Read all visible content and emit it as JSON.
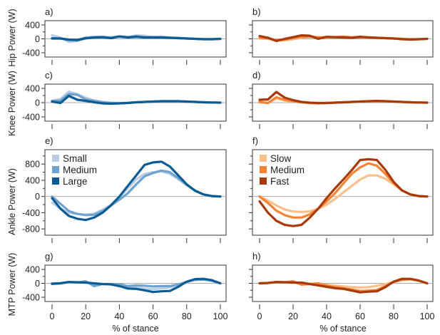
{
  "figure": {
    "x_axis_title": "% of stance",
    "row_ylabels": [
      "Hip Power (W)",
      "Knee Power (W)",
      "Ankle Power (W)",
      "MTP Power (W)"
    ]
  },
  "chart_data": [
    {
      "id": "a",
      "panel_label": "a)",
      "type": "line",
      "joint": "Hip",
      "condition_group": "size",
      "ylabel": "Hip Power (W)",
      "xlabel": "",
      "xlim": [
        0,
        100
      ],
      "ylim": [
        -400,
        400
      ],
      "yticks": [
        -400,
        0,
        400
      ],
      "xticks": [
        0,
        20,
        40,
        60,
        80,
        100
      ],
      "show_x_tick_labels": false,
      "show_y_tick_labels": true,
      "zero_line": true,
      "x": [
        0,
        5,
        10,
        15,
        20,
        25,
        30,
        35,
        40,
        45,
        50,
        55,
        60,
        65,
        70,
        75,
        80,
        85,
        90,
        95,
        100
      ],
      "series": [
        {
          "name": "Small",
          "color": "#bccde6",
          "values": [
            100,
            40,
            -90,
            -60,
            40,
            60,
            60,
            50,
            60,
            40,
            100,
            90,
            50,
            70,
            40,
            30,
            10,
            0,
            -10,
            -10,
            0
          ]
        },
        {
          "name": "Medium",
          "color": "#6fa3cf",
          "values": [
            20,
            10,
            -40,
            -50,
            10,
            40,
            50,
            30,
            70,
            50,
            80,
            40,
            50,
            40,
            30,
            20,
            10,
            0,
            -10,
            -10,
            0
          ]
        },
        {
          "name": "Large",
          "color": "#0b5c94",
          "values": [
            10,
            10,
            -20,
            -30,
            20,
            40,
            50,
            20,
            70,
            40,
            60,
            40,
            40,
            40,
            30,
            20,
            10,
            0,
            -10,
            -10,
            0
          ]
        }
      ]
    },
    {
      "id": "b",
      "panel_label": "b)",
      "type": "line",
      "joint": "Hip",
      "condition_group": "speed",
      "ylabel": "",
      "xlabel": "",
      "xlim": [
        0,
        100
      ],
      "ylim": [
        -400,
        400
      ],
      "yticks": [
        -400,
        0,
        400
      ],
      "xticks": [
        0,
        20,
        40,
        60,
        80,
        100
      ],
      "show_x_tick_labels": false,
      "show_y_tick_labels": false,
      "zero_line": true,
      "x": [
        0,
        5,
        10,
        15,
        20,
        25,
        30,
        35,
        40,
        45,
        50,
        55,
        60,
        65,
        70,
        75,
        80,
        85,
        90,
        95,
        100
      ],
      "series": [
        {
          "name": "Slow",
          "color": "#fbbf8a",
          "values": [
            10,
            0,
            -60,
            -40,
            -10,
            30,
            60,
            50,
            40,
            50,
            70,
            50,
            60,
            50,
            30,
            20,
            10,
            0,
            -10,
            -10,
            0
          ]
        },
        {
          "name": "Medium",
          "color": "#f48434",
          "values": [
            30,
            20,
            -40,
            -20,
            20,
            60,
            70,
            40,
            50,
            50,
            60,
            40,
            50,
            40,
            30,
            20,
            10,
            0,
            -10,
            -10,
            0
          ]
        },
        {
          "name": "Fast",
          "color": "#a83a0a",
          "values": [
            80,
            30,
            -60,
            0,
            50,
            100,
            90,
            0,
            60,
            50,
            40,
            30,
            60,
            40,
            30,
            20,
            10,
            -10,
            -20,
            -10,
            0
          ]
        }
      ]
    },
    {
      "id": "c",
      "panel_label": "c)",
      "type": "line",
      "joint": "Knee",
      "condition_group": "size",
      "ylabel": "Knee Power (W)",
      "xlabel": "",
      "xlim": [
        0,
        100
      ],
      "ylim": [
        -400,
        400
      ],
      "yticks": [
        -400,
        0,
        400
      ],
      "xticks": [
        0,
        20,
        40,
        60,
        80,
        100
      ],
      "show_x_tick_labels": false,
      "show_y_tick_labels": true,
      "zero_line": true,
      "x": [
        0,
        5,
        10,
        15,
        20,
        25,
        30,
        35,
        40,
        45,
        50,
        55,
        60,
        65,
        70,
        75,
        80,
        85,
        90,
        95,
        100
      ],
      "series": [
        {
          "name": "Small",
          "color": "#bccde6",
          "values": [
            60,
            100,
            310,
            240,
            140,
            60,
            20,
            0,
            -10,
            0,
            10,
            20,
            30,
            40,
            40,
            40,
            30,
            20,
            10,
            5,
            0
          ]
        },
        {
          "name": "Medium",
          "color": "#6fa3cf",
          "values": [
            40,
            60,
            240,
            220,
            90,
            50,
            10,
            -10,
            -20,
            -10,
            10,
            20,
            30,
            40,
            40,
            40,
            30,
            20,
            10,
            5,
            0
          ]
        },
        {
          "name": "Large",
          "color": "#0b5c94",
          "values": [
            30,
            -10,
            190,
            80,
            50,
            10,
            -20,
            -30,
            -20,
            -10,
            10,
            20,
            30,
            40,
            40,
            40,
            30,
            20,
            10,
            5,
            0
          ]
        }
      ]
    },
    {
      "id": "d",
      "panel_label": "d)",
      "type": "line",
      "joint": "Knee",
      "condition_group": "speed",
      "ylabel": "",
      "xlabel": "",
      "xlim": [
        0,
        100
      ],
      "ylim": [
        -400,
        400
      ],
      "yticks": [
        -400,
        0,
        400
      ],
      "xticks": [
        0,
        20,
        40,
        60,
        80,
        100
      ],
      "show_x_tick_labels": false,
      "show_y_tick_labels": false,
      "zero_line": true,
      "x": [
        0,
        5,
        10,
        15,
        20,
        25,
        30,
        35,
        40,
        45,
        50,
        55,
        60,
        65,
        70,
        75,
        80,
        85,
        90,
        95,
        100
      ],
      "series": [
        {
          "name": "Slow",
          "color": "#fbbf8a",
          "values": [
            10,
            -10,
            120,
            60,
            30,
            10,
            -10,
            -20,
            -10,
            0,
            10,
            20,
            30,
            40,
            40,
            40,
            30,
            20,
            10,
            5,
            0
          ]
        },
        {
          "name": "Medium",
          "color": "#f48434",
          "values": [
            20,
            -10,
            150,
            80,
            40,
            10,
            -10,
            -20,
            -10,
            0,
            10,
            20,
            30,
            40,
            40,
            40,
            30,
            20,
            10,
            5,
            0
          ]
        },
        {
          "name": "Fast",
          "color": "#a83a0a",
          "values": [
            80,
            90,
            300,
            140,
            70,
            20,
            0,
            -10,
            -10,
            0,
            10,
            20,
            30,
            40,
            50,
            40,
            30,
            20,
            10,
            5,
            0
          ]
        }
      ]
    },
    {
      "id": "e",
      "panel_label": "e)",
      "type": "line",
      "joint": "Ankle",
      "condition_group": "size",
      "ylabel": "Ankle Power (W)",
      "xlabel": "",
      "xlim": [
        0,
        100
      ],
      "ylim": [
        -850,
        1050
      ],
      "yticks": [
        -800,
        -400,
        0,
        400,
        800
      ],
      "minor_yticks": [
        -600,
        -200,
        200,
        600,
        1000
      ],
      "xticks": [
        0,
        20,
        40,
        60,
        80,
        100
      ],
      "show_x_tick_labels": false,
      "show_y_tick_labels": true,
      "zero_line": true,
      "legend": "top-left",
      "x": [
        0,
        5,
        10,
        15,
        20,
        25,
        30,
        35,
        40,
        45,
        50,
        55,
        60,
        65,
        70,
        75,
        80,
        85,
        90,
        95,
        100
      ],
      "series": [
        {
          "name": "Small",
          "color": "#bccde6",
          "values": [
            -150,
            -300,
            -400,
            -430,
            -450,
            -420,
            -330,
            -200,
            -20,
            200,
            420,
            560,
            600,
            620,
            560,
            430,
            280,
            140,
            50,
            10,
            0
          ]
        },
        {
          "name": "Medium",
          "color": "#6fa3cf",
          "values": [
            0,
            -180,
            -360,
            -430,
            -460,
            -450,
            -360,
            -220,
            -80,
            80,
            300,
            500,
            580,
            640,
            600,
            450,
            290,
            150,
            50,
            10,
            0
          ]
        },
        {
          "name": "Large",
          "color": "#0b5c94",
          "values": [
            -40,
            -300,
            -480,
            -550,
            -580,
            -520,
            -400,
            -220,
            0,
            260,
            520,
            780,
            840,
            860,
            740,
            520,
            300,
            140,
            50,
            10,
            0
          ]
        }
      ]
    },
    {
      "id": "f",
      "panel_label": "f)",
      "type": "line",
      "joint": "Ankle",
      "condition_group": "speed",
      "ylabel": "",
      "xlabel": "",
      "xlim": [
        0,
        100
      ],
      "ylim": [
        -850,
        1050
      ],
      "yticks": [
        -800,
        -400,
        0,
        400,
        800
      ],
      "minor_yticks": [
        -600,
        -200,
        200,
        600,
        1000
      ],
      "xticks": [
        0,
        20,
        40,
        60,
        80,
        100
      ],
      "show_x_tick_labels": false,
      "show_y_tick_labels": false,
      "zero_line": true,
      "legend": "top-left",
      "x": [
        0,
        5,
        10,
        15,
        20,
        25,
        30,
        35,
        40,
        45,
        50,
        55,
        60,
        65,
        70,
        75,
        80,
        85,
        90,
        95,
        100
      ],
      "series": [
        {
          "name": "Slow",
          "color": "#fbbf8a",
          "values": [
            0,
            -100,
            -220,
            -320,
            -370,
            -380,
            -370,
            -300,
            -200,
            -60,
            100,
            260,
            420,
            520,
            520,
            440,
            300,
            150,
            50,
            10,
            0
          ]
        },
        {
          "name": "Medium",
          "color": "#f48434",
          "values": [
            0,
            -160,
            -350,
            -460,
            -520,
            -520,
            -440,
            -300,
            -120,
            80,
            320,
            560,
            720,
            820,
            760,
            560,
            330,
            150,
            50,
            10,
            0
          ]
        },
        {
          "name": "Fast",
          "color": "#a83a0a",
          "values": [
            -120,
            -400,
            -600,
            -700,
            -730,
            -700,
            -520,
            -300,
            -40,
            200,
            420,
            650,
            900,
            920,
            900,
            660,
            360,
            150,
            50,
            10,
            0
          ]
        }
      ]
    },
    {
      "id": "g",
      "panel_label": "g)",
      "type": "line",
      "joint": "MTP",
      "condition_group": "size",
      "ylabel": "MTP Power (W)",
      "xlabel": "% of stance",
      "xlim": [
        0,
        100
      ],
      "ylim": [
        -400,
        400
      ],
      "yticks": [
        -400,
        0,
        400
      ],
      "xticks": [
        0,
        20,
        40,
        60,
        80,
        100
      ],
      "show_x_tick_labels": true,
      "show_y_tick_labels": true,
      "zero_line": true,
      "x": [
        0,
        5,
        10,
        15,
        20,
        25,
        30,
        35,
        40,
        45,
        50,
        55,
        60,
        65,
        70,
        75,
        80,
        85,
        90,
        95,
        100
      ],
      "series": [
        {
          "name": "Small",
          "color": "#bccde6",
          "values": [
            0,
            10,
            30,
            20,
            60,
            -60,
            -20,
            -20,
            -50,
            -100,
            -120,
            -150,
            -170,
            -150,
            -120,
            -50,
            40,
            100,
            110,
            70,
            0
          ]
        },
        {
          "name": "Medium",
          "color": "#6fa3cf",
          "values": [
            -20,
            0,
            40,
            20,
            60,
            -80,
            -20,
            -20,
            -20,
            -80,
            -60,
            -70,
            -90,
            -80,
            -80,
            -30,
            40,
            100,
            110,
            70,
            0
          ]
        },
        {
          "name": "Large",
          "color": "#0b5c94",
          "values": [
            -10,
            0,
            40,
            30,
            20,
            0,
            -20,
            -30,
            -80,
            -150,
            -160,
            -200,
            -250,
            -230,
            -220,
            -100,
            50,
            120,
            130,
            90,
            0
          ]
        }
      ]
    },
    {
      "id": "h",
      "panel_label": "h)",
      "type": "line",
      "joint": "MTP",
      "condition_group": "speed",
      "ylabel": "",
      "xlabel": "% of stance",
      "xlim": [
        0,
        100
      ],
      "ylim": [
        -400,
        400
      ],
      "yticks": [
        -400,
        0,
        400
      ],
      "xticks": [
        0,
        20,
        40,
        60,
        80,
        100
      ],
      "show_x_tick_labels": true,
      "show_y_tick_labels": false,
      "zero_line": true,
      "x": [
        0,
        5,
        10,
        15,
        20,
        25,
        30,
        35,
        40,
        45,
        50,
        55,
        60,
        65,
        70,
        75,
        80,
        85,
        90,
        95,
        100
      ],
      "series": [
        {
          "name": "Slow",
          "color": "#fbbf8a",
          "values": [
            0,
            10,
            40,
            30,
            40,
            -30,
            -20,
            -40,
            -50,
            -70,
            -90,
            -110,
            -120,
            -110,
            -70,
            -20,
            40,
            90,
            110,
            70,
            0
          ]
        },
        {
          "name": "Medium",
          "color": "#f48434",
          "values": [
            0,
            10,
            40,
            30,
            60,
            -40,
            -20,
            0,
            -60,
            -110,
            -140,
            -180,
            -220,
            -210,
            -190,
            -80,
            40,
            110,
            120,
            80,
            0
          ]
        },
        {
          "name": "Fast",
          "color": "#a83a0a",
          "values": [
            0,
            10,
            40,
            30,
            20,
            20,
            -20,
            -60,
            -100,
            -140,
            -160,
            -210,
            -260,
            -240,
            -230,
            -110,
            50,
            130,
            130,
            80,
            0
          ]
        }
      ]
    }
  ]
}
